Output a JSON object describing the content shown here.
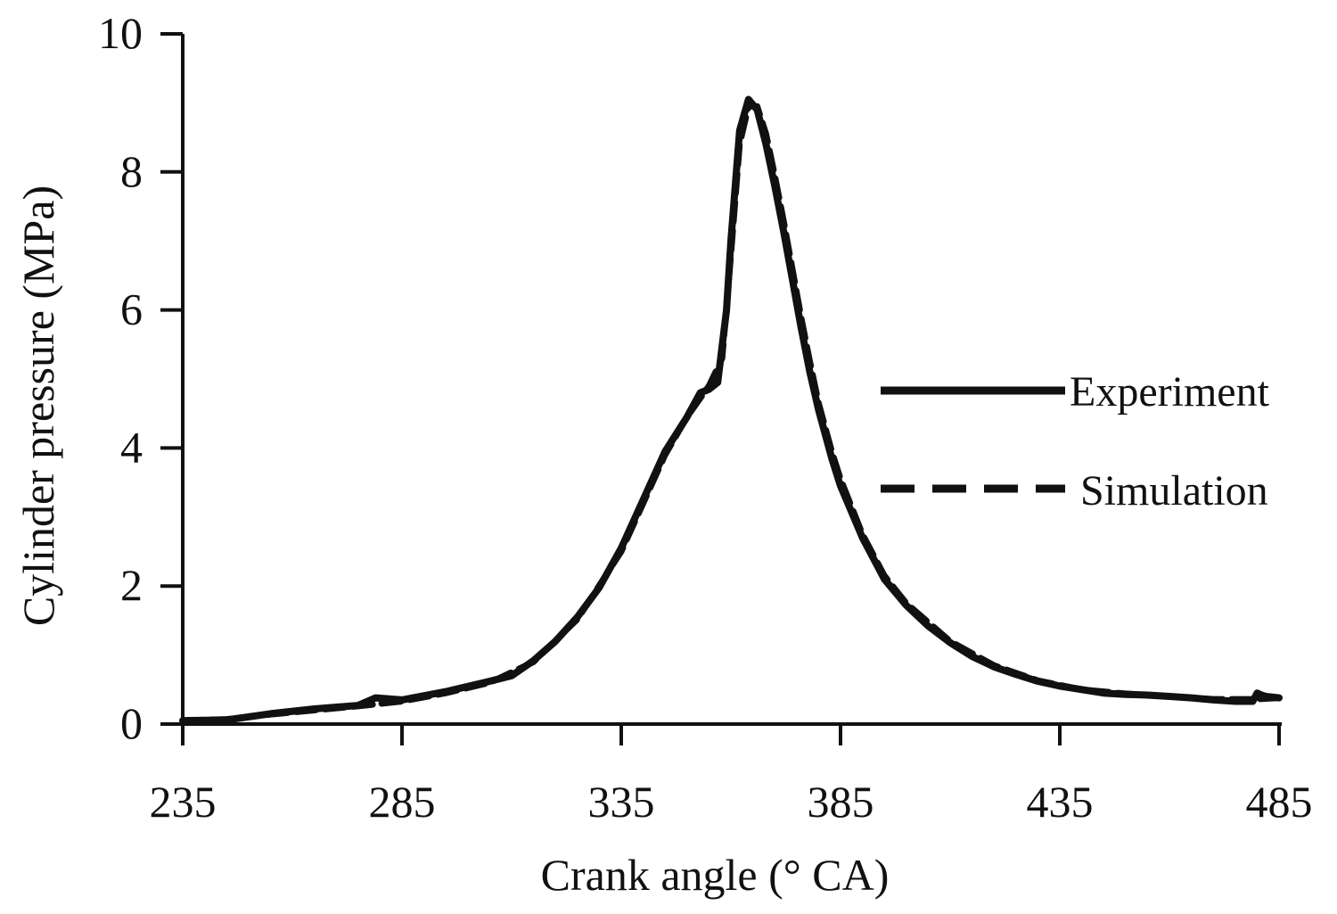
{
  "chart_data": {
    "type": "line",
    "xlabel": "Crank angle (° CA)",
    "ylabel": "Cylinder pressure (MPa)",
    "xlim": [
      235,
      485
    ],
    "ylim": [
      0,
      10
    ],
    "x_ticks": [
      "235",
      "285",
      "335",
      "385",
      "435",
      "485"
    ],
    "y_ticks": [
      "0",
      "2",
      "4",
      "6",
      "8",
      "10"
    ],
    "grid": false,
    "legend_position": "right",
    "colors": {
      "line": "#111111"
    },
    "series": [
      {
        "name": "Experiment",
        "style": "solid",
        "x": [
          235,
          245,
          255,
          265,
          275,
          279,
          285,
          295,
          305,
          310,
          315,
          320,
          325,
          330,
          335,
          340,
          345,
          350,
          353,
          355,
          357,
          359,
          360,
          362,
          364,
          366,
          368,
          370,
          372,
          374,
          376,
          378,
          380,
          383,
          385,
          390,
          395,
          400,
          405,
          410,
          415,
          420,
          425,
          430,
          435,
          440,
          445,
          450,
          455,
          460,
          465,
          470,
          475,
          479,
          480,
          481,
          482,
          485
        ],
        "y": [
          0.05,
          0.06,
          0.15,
          0.22,
          0.27,
          0.38,
          0.35,
          0.47,
          0.62,
          0.7,
          0.92,
          1.2,
          1.55,
          1.98,
          2.55,
          3.25,
          3.95,
          4.45,
          4.8,
          4.85,
          4.95,
          6.0,
          7.0,
          8.6,
          9.05,
          8.9,
          8.4,
          7.8,
          7.15,
          6.45,
          5.75,
          5.1,
          4.55,
          3.85,
          3.45,
          2.7,
          2.1,
          1.72,
          1.42,
          1.18,
          0.98,
          0.83,
          0.72,
          0.62,
          0.55,
          0.5,
          0.45,
          0.43,
          0.42,
          0.4,
          0.38,
          0.35,
          0.33,
          0.33,
          0.45,
          0.42,
          0.4,
          0.38
        ]
      },
      {
        "name": "Simulation",
        "style": "dashed",
        "x": [
          235,
          245,
          255,
          265,
          275,
          285,
          295,
          305,
          315,
          325,
          335,
          345,
          350,
          355,
          358,
          360,
          362,
          364,
          366,
          368,
          370,
          372,
          374,
          376,
          378,
          380,
          383,
          385,
          390,
          395,
          400,
          410,
          420,
          430,
          440,
          450,
          460,
          470,
          480,
          485
        ],
        "y": [
          0.05,
          0.07,
          0.14,
          0.2,
          0.26,
          0.33,
          0.45,
          0.6,
          0.9,
          1.52,
          2.5,
          3.9,
          4.45,
          4.9,
          5.3,
          6.8,
          8.4,
          8.95,
          8.95,
          8.55,
          7.95,
          7.3,
          6.6,
          5.9,
          5.25,
          4.65,
          3.95,
          3.55,
          2.75,
          2.15,
          1.75,
          1.2,
          0.85,
          0.63,
          0.5,
          0.44,
          0.4,
          0.36,
          0.36,
          0.38
        ]
      }
    ]
  }
}
